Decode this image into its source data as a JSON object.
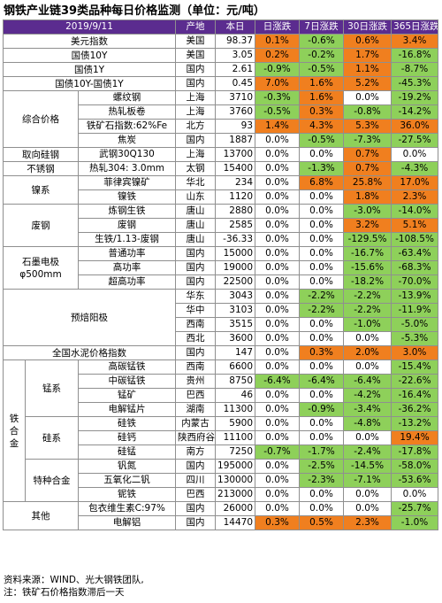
{
  "title": "钢铁产业链39类品种每日价格监测（单位：元/吨）",
  "header": {
    "date": "2019/9/11",
    "region": "产地",
    "price": "本日",
    "d1": "日涨跌",
    "d7": "7日涨跌",
    "d30": "30日涨跌",
    "d365": "365日涨跌"
  },
  "rows": [
    {
      "cat": "美元指数",
      "name": "",
      "region": "美国",
      "price": "98.37",
      "d1": "0.1%",
      "d7": "-0.6%",
      "d30": "0.6%",
      "d365": "3.4%"
    },
    {
      "cat": "国债10Y",
      "name": "",
      "region": "美国",
      "price": "3.05",
      "d1": "0.2%",
      "d7": "-0.2%",
      "d30": "1.7%",
      "d365": "-16.8%"
    },
    {
      "cat": "国债1Y",
      "name": "",
      "region": "国内",
      "price": "2.61",
      "d1": "-0.9%",
      "d7": "-0.5%",
      "d30": "1.1%",
      "d365": "-8.7%"
    },
    {
      "cat": "国债10Y-国债1Y",
      "name": "",
      "region": "国内",
      "price": "0.45",
      "d1": "7.0%",
      "d7": "1.6%",
      "d30": "5.2%",
      "d365": "-45.3%"
    },
    {
      "cat": "综合价格",
      "name": "螺纹钢",
      "region": "上海",
      "price": "3710",
      "d1": "-0.3%",
      "d7": "1.6%",
      "d30": "0.0%",
      "d365": "-19.2%"
    },
    {
      "cat": "",
      "name": "热轧板卷",
      "region": "上海",
      "price": "3760",
      "d1": "-0.5%",
      "d7": "0.3%",
      "d30": "-0.8%",
      "d365": "-14.2%"
    },
    {
      "cat": "",
      "name": "铁矿石指数:62%Fe",
      "region": "北方",
      "price": "93",
      "d1": "1.4%",
      "d7": "4.3%",
      "d30": "5.3%",
      "d365": "36.0%"
    },
    {
      "cat": "",
      "name": "焦炭",
      "region": "国内",
      "price": "1887",
      "d1": "0.0%",
      "d7": "-0.5%",
      "d30": "-7.3%",
      "d365": "-27.5%"
    },
    {
      "cat": "取向硅钢",
      "name": "武钢30Q130",
      "region": "上海",
      "price": "13700",
      "d1": "0.0%",
      "d7": "0.0%",
      "d30": "0.7%",
      "d365": "0.0%"
    },
    {
      "cat": "不锈钢",
      "name": "热轧304: 3.0mm",
      "region": "太钢",
      "price": "15400",
      "d1": "0.0%",
      "d7": "-1.3%",
      "d30": "0.7%",
      "d365": "-4.3%"
    },
    {
      "cat": "镍系",
      "name": "菲律宾镍矿",
      "region": "华北",
      "price": "234",
      "d1": "0.0%",
      "d7": "6.8%",
      "d30": "25.8%",
      "d365": "17.0%"
    },
    {
      "cat": "",
      "name": "镍铁",
      "region": "山东",
      "price": "1120",
      "d1": "0.0%",
      "d7": "0.0%",
      "d30": "1.8%",
      "d365": "2.3%"
    },
    {
      "cat": "废钢",
      "name": "炼钢生铁",
      "region": "唐山",
      "price": "2880",
      "d1": "0.0%",
      "d7": "0.0%",
      "d30": "-3.0%",
      "d365": "-14.0%"
    },
    {
      "cat": "",
      "name": "废钢",
      "region": "唐山",
      "price": "2585",
      "d1": "0.0%",
      "d7": "0.0%",
      "d30": "3.2%",
      "d365": "5.1%"
    },
    {
      "cat": "",
      "name": "生铁/1.13-废钢",
      "region": "唐山",
      "price": "-36.33",
      "d1": "0.0%",
      "d7": "0.0%",
      "d30": "-129.5%",
      "d365": "-108.5%"
    },
    {
      "cat": "石墨电极 φ500mm",
      "name": "普通功率",
      "region": "国内",
      "price": "15000",
      "d1": "0.0%",
      "d7": "0.0%",
      "d30": "-16.7%",
      "d365": "-63.4%"
    },
    {
      "cat": "",
      "name": "高功率",
      "region": "国内",
      "price": "19000",
      "d1": "0.0%",
      "d7": "0.0%",
      "d30": "-15.6%",
      "d365": "-68.3%"
    },
    {
      "cat": "",
      "name": "超高功率",
      "region": "国内",
      "price": "22500",
      "d1": "0.0%",
      "d7": "0.0%",
      "d30": "-18.2%",
      "d365": "-70.0%"
    },
    {
      "cat": "预焙阳极",
      "name": "",
      "region": "华东",
      "price": "3043",
      "d1": "0.0%",
      "d7": "-2.2%",
      "d30": "-2.2%",
      "d365": "-13.9%"
    },
    {
      "cat": "",
      "name": "",
      "region": "华中",
      "price": "3103",
      "d1": "0.0%",
      "d7": "-2.2%",
      "d30": "-2.2%",
      "d365": "-11.9%"
    },
    {
      "cat": "",
      "name": "",
      "region": "西南",
      "price": "3515",
      "d1": "0.0%",
      "d7": "0.0%",
      "d30": "-1.0%",
      "d365": "-5.0%"
    },
    {
      "cat": "",
      "name": "",
      "region": "西北",
      "price": "3600",
      "d1": "0.0%",
      "d7": "0.0%",
      "d30": "0.0%",
      "d365": "-5.3%"
    },
    {
      "cat": "全国水泥价格指数",
      "name": "",
      "region": "国内",
      "price": "147",
      "d1": "0.0%",
      "d7": "0.3%",
      "d30": "2.0%",
      "d365": "3.0%"
    },
    {
      "cat": "锰系",
      "name": "高碳锰铁",
      "region": "西南",
      "price": "6600",
      "d1": "0.0%",
      "d7": "0.0%",
      "d30": "0.0%",
      "d365": "-15.4%"
    },
    {
      "cat": "",
      "name": "中碳锰铁",
      "region": "贵州",
      "price": "8750",
      "d1": "-6.4%",
      "d7": "-6.4%",
      "d30": "-6.4%",
      "d365": "-22.6%"
    },
    {
      "cat": "",
      "name": "锰矿",
      "region": "巴西",
      "price": "46",
      "d1": "0.0%",
      "d7": "0.0%",
      "d30": "-4.2%",
      "d365": "-16.4%"
    },
    {
      "cat": "",
      "name": "电解锰片",
      "region": "湖南",
      "price": "11300",
      "d1": "0.0%",
      "d7": "-0.9%",
      "d30": "-3.4%",
      "d365": "-36.2%"
    },
    {
      "cat": "硅系",
      "name": "硅铁",
      "region": "内蒙古",
      "price": "5900",
      "d1": "0.0%",
      "d7": "0.0%",
      "d30": "-4.8%",
      "d365": "-13.2%"
    },
    {
      "cat": "",
      "name": "硅钙",
      "region": "陕西府谷",
      "price": "11100",
      "d1": "0.0%",
      "d7": "0.0%",
      "d30": "0.0%",
      "d365": "19.4%"
    },
    {
      "cat": "",
      "name": "硅锰",
      "region": "南方",
      "price": "7250",
      "d1": "-0.7%",
      "d7": "-1.7%",
      "d30": "-2.4%",
      "d365": "-17.8%"
    },
    {
      "cat": "特种合金",
      "name": "钒氮",
      "region": "国内",
      "price": "195000",
      "d1": "0.0%",
      "d7": "-2.5%",
      "d30": "-14.5%",
      "d365": "-58.0%"
    },
    {
      "cat": "",
      "name": "五氧化二钒",
      "region": "四川",
      "price": "130000",
      "d1": "0.0%",
      "d7": "-2.3%",
      "d30": "-7.1%",
      "d365": "-53.6%"
    },
    {
      "cat": "",
      "name": "铌铁",
      "region": "巴西",
      "price": "213000",
      "d1": "0.0%",
      "d7": "0.0%",
      "d30": "0.0%",
      "d365": "0.0%"
    },
    {
      "cat": "其他",
      "name": "包衣维生素C:97%",
      "region": "国内",
      "price": "26000",
      "d1": "0.0%",
      "d7": "0.0%",
      "d30": "0.0%",
      "d365": "-25.7%"
    },
    {
      "cat": "",
      "name": "电解铝",
      "region": "国内",
      "price": "14470",
      "d1": "0.3%",
      "d7": "0.5%",
      "d30": "2.3%",
      "d365": "-1.0%"
    }
  ],
  "group_ferroalloy": "铁合金",
  "notes": {
    "source": "资料来源：WIND、光大钢铁团队,",
    "note": "注：铁矿石价格指数滞后一天"
  },
  "colors": {
    "header": "#5b2c8f",
    "up": "#f07f1f",
    "down": "#8ed05a"
  }
}
